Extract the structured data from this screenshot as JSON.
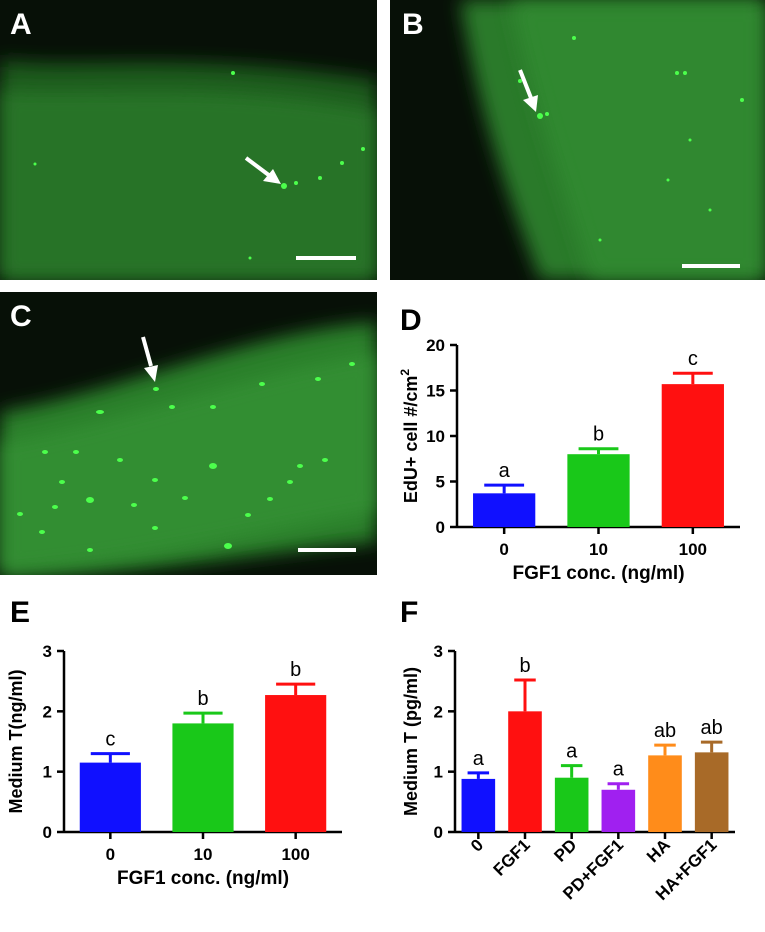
{
  "panels": {
    "A": {
      "letter": "A"
    },
    "B": {
      "letter": "B"
    },
    "C": {
      "letter": "C"
    },
    "D": {
      "letter": "D"
    },
    "E": {
      "letter": "E"
    },
    "F": {
      "letter": "F"
    }
  },
  "colors": {
    "blue": "#1010ff",
    "green": "#19c819",
    "red": "#ff1010",
    "purple": "#a020f0",
    "orange": "#ff8c1a",
    "brown": "#a86a28",
    "fluorescent_green": "#2ee02e"
  },
  "chart_data": [
    {
      "panel": "D",
      "type": "bar",
      "categories": [
        "0",
        "10",
        "100"
      ],
      "values": [
        3.7,
        8.0,
        15.7
      ],
      "errors": [
        0.9,
        0.6,
        1.2
      ],
      "significance": [
        "a",
        "b",
        "c"
      ],
      "colors": [
        "#1010ff",
        "#19c819",
        "#ff1010"
      ],
      "xlabel": "FGF1 conc. (ng/ml)",
      "ylabel": "EdU+ cell #/cm",
      "ylabel_sup": "2",
      "ylim": [
        0,
        20
      ],
      "yticks": [
        "0",
        "5",
        "10",
        "15",
        "20"
      ]
    },
    {
      "panel": "E",
      "type": "bar",
      "categories": [
        "0",
        "10",
        "100"
      ],
      "values": [
        1.15,
        1.8,
        2.27
      ],
      "errors": [
        0.15,
        0.17,
        0.18
      ],
      "significance": [
        "c",
        "b",
        "b"
      ],
      "colors": [
        "#1010ff",
        "#19c819",
        "#ff1010"
      ],
      "xlabel": "FGF1 conc. (ng/ml)",
      "ylabel": "Medium T(ng/ml)",
      "ylim": [
        0,
        3
      ],
      "yticks": [
        "0",
        "1",
        "2",
        "3"
      ]
    },
    {
      "panel": "F",
      "type": "bar",
      "categories": [
        "0",
        "FGF1",
        "PD",
        "PD+FGF1",
        "HA",
        "HA+FGF1"
      ],
      "values": [
        0.88,
        2.0,
        0.9,
        0.7,
        1.27,
        1.32
      ],
      "errors": [
        0.1,
        0.52,
        0.2,
        0.1,
        0.17,
        0.17
      ],
      "significance": [
        "a",
        "b",
        "a",
        "a",
        "ab",
        "ab"
      ],
      "colors": [
        "#1010ff",
        "#ff1010",
        "#19c819",
        "#a020f0",
        "#ff8c1a",
        "#a86a28"
      ],
      "xlabel": "",
      "ylabel": "Medium T (pg/ml)",
      "ylim": [
        0,
        3
      ],
      "yticks": [
        "0",
        "1",
        "2",
        "3"
      ]
    }
  ]
}
